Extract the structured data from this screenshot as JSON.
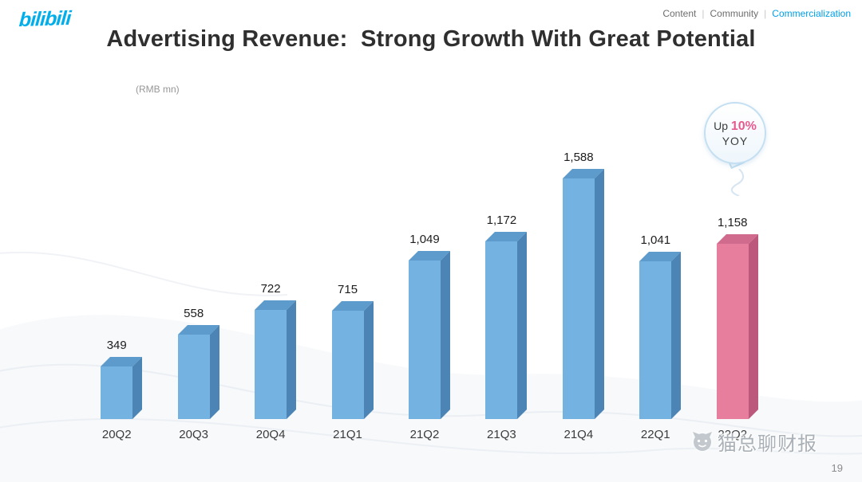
{
  "header": {
    "logo_text": "bilibili",
    "brand_color": "#00AEEC",
    "nav": [
      {
        "label": "Content",
        "active": false
      },
      {
        "label": "Community",
        "active": false
      },
      {
        "label": "Commercialization",
        "active": true
      }
    ]
  },
  "title": "Advertising Revenue:  Strong Growth With Great Potential",
  "unit_label": "(RMB mn)",
  "badge": {
    "prefix": "Up",
    "value": "10%",
    "suffix": "YOY",
    "value_color": "#E75A8D"
  },
  "chart_data": {
    "type": "bar",
    "title": "Advertising Revenue:  Strong Growth With Great Potential",
    "xlabel": "",
    "ylabel": "(RMB mn)",
    "grid": false,
    "legend": false,
    "ylim": [
      0,
      1700
    ],
    "categories": [
      "20Q2",
      "20Q3",
      "20Q4",
      "21Q1",
      "21Q2",
      "21Q3",
      "21Q4",
      "22Q1",
      "22Q2"
    ],
    "values": [
      349,
      558,
      722,
      715,
      1049,
      1172,
      1588,
      1041,
      1158
    ],
    "value_labels": [
      "349",
      "558",
      "722",
      "715",
      "1,049",
      "1,172",
      "1,588",
      "1,041",
      "1,158"
    ],
    "highlight_index": 8,
    "annotation": "Up 10% YOY",
    "colors": {
      "bar_front": "#74B2E2",
      "bar_side": "#4C85B5",
      "bar_top": "#5C9BCB",
      "highlight_front": "#E87E9E",
      "highlight_side": "#BC587C",
      "highlight_top": "#D16B8D"
    }
  },
  "watermark": {
    "text": "猫总聊财报"
  },
  "page_number": "19"
}
